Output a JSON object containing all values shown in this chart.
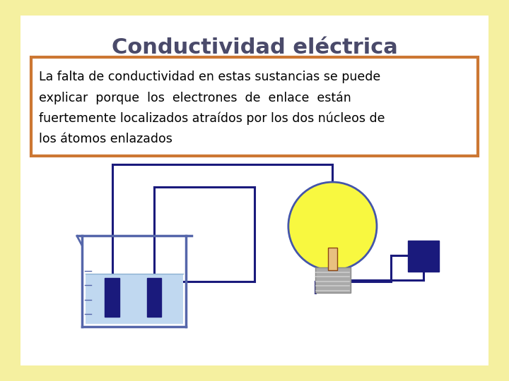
{
  "title": "Conductividad eléctrica",
  "title_fontsize": 22,
  "title_color": "#4a4a6a",
  "body_text_lines": [
    "La falta de conductividad en estas sustancias se puede",
    "explicar  porque  los  electrones  de  enlace  están",
    "fuertemente localizados atraídos por los dos núcleos de",
    "los átomos enlazados"
  ],
  "body_fontsize": 12.5,
  "background_outer": "#f5f0a0",
  "background_inner": "#ffffff",
  "text_box_border": "#cc7733",
  "text_box_bg": "#ffffff",
  "wire_color": "#1a1a7c",
  "beaker_water_color": "#c0d8f0",
  "beaker_outline_color": "#5566aa",
  "electrode_color": "#1a1a7c",
  "bulb_yellow": "#f8f840",
  "bulb_outline": "#4455aa",
  "battery_color": "#1a1a7c",
  "socket_color": "#aaaaaa",
  "wire_lw": 2.2
}
